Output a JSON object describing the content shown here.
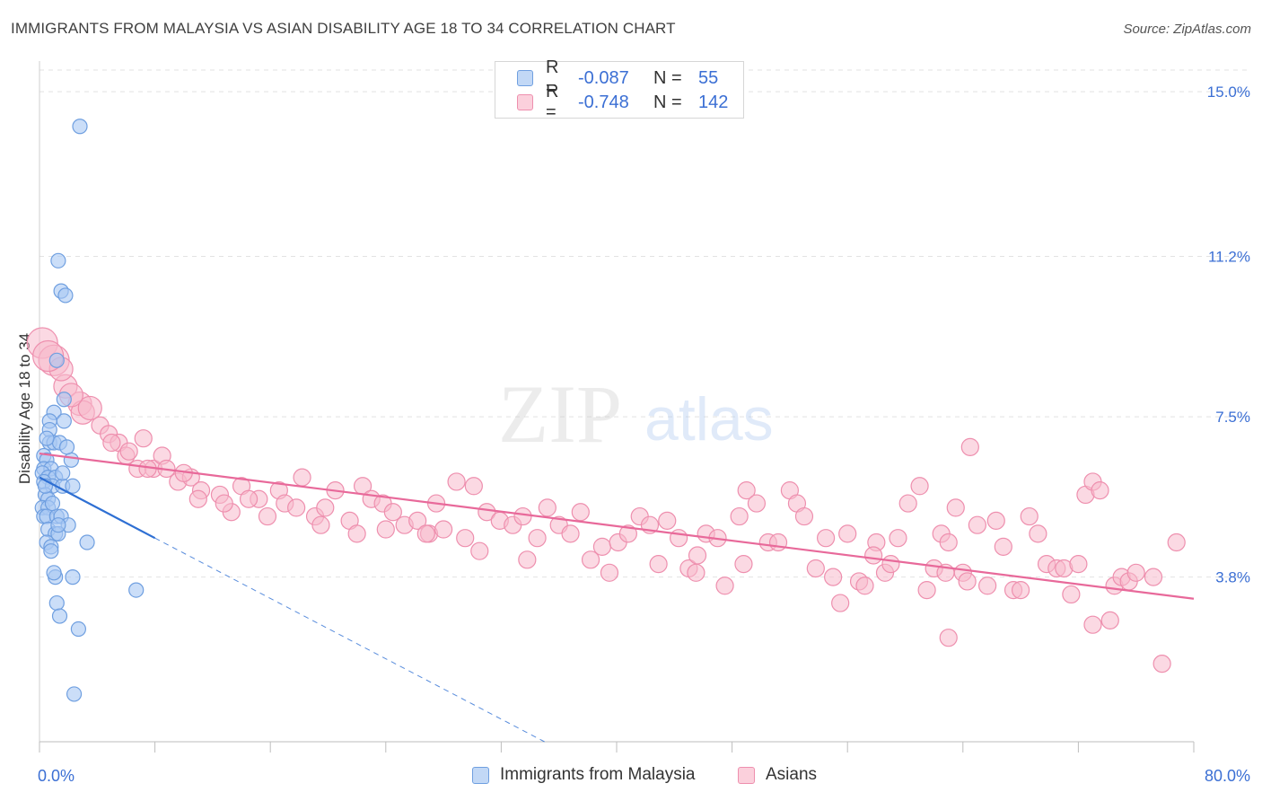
{
  "title": "IMMIGRANTS FROM MALAYSIA VS ASIAN DISABILITY AGE 18 TO 34 CORRELATION CHART",
  "source": "Source: ZipAtlas.com",
  "watermark": {
    "zip": "ZIP",
    "atlas": "atlas"
  },
  "colors": {
    "blue_fill": "#a9c8f3",
    "blue_stroke": "#6f9fe0",
    "blue_line": "#2e6fd3",
    "pink_fill": "#f7b9cc",
    "pink_stroke": "#ee8fae",
    "pink_line": "#e8699a",
    "grid": "#e2e2e2",
    "axis_text": "#3b6fd4"
  },
  "legend_top": [
    {
      "swatch": "blue",
      "r_label": "R =",
      "r_value": "-0.087",
      "n_label": "N =",
      "n_value": "55"
    },
    {
      "swatch": "pink",
      "r_label": "R =",
      "r_value": "-0.748",
      "n_label": "N =",
      "n_value": "142"
    }
  ],
  "legend_bottom": [
    {
      "swatch": "blue",
      "label": "Immigrants from Malaysia"
    },
    {
      "swatch": "pink",
      "label": "Asians"
    }
  ],
  "chart_data": {
    "type": "scatter",
    "title": "IMMIGRANTS FROM MALAYSIA VS ASIAN DISABILITY AGE 18 TO 34 CORRELATION CHART",
    "xlabel": "",
    "ylabel": "Disability Age 18 to 34",
    "xlim": [
      0,
      80
    ],
    "ylim": [
      0,
      15.5
    ],
    "x_tick_labels": [
      "0.0%",
      "80.0%"
    ],
    "y_ticks": [
      3.8,
      7.5,
      11.2,
      15.0
    ],
    "y_tick_labels": [
      "3.8%",
      "7.5%",
      "11.2%",
      "15.0%"
    ],
    "grid": true,
    "legend": "top-center",
    "series": [
      {
        "name": "Immigrants from Malaysia",
        "color": "blue",
        "r": -0.087,
        "n": 55,
        "trend": {
          "x": [
            0,
            8
          ],
          "y": [
            6.1,
            4.7
          ],
          "dashed_to": [
            35,
            0
          ]
        },
        "points": [
          [
            2.8,
            14.2
          ],
          [
            1.3,
            11.1
          ],
          [
            1.5,
            10.4
          ],
          [
            1.8,
            10.3
          ],
          [
            1.2,
            8.8
          ],
          [
            1.7,
            7.9
          ],
          [
            1.0,
            7.6
          ],
          [
            1.7,
            7.4
          ],
          [
            0.7,
            7.4
          ],
          [
            0.7,
            7.2
          ],
          [
            0.7,
            6.9
          ],
          [
            1.0,
            6.9
          ],
          [
            1.4,
            6.9
          ],
          [
            0.3,
            6.6
          ],
          [
            0.5,
            6.5
          ],
          [
            0.3,
            6.3
          ],
          [
            0.8,
            6.3
          ],
          [
            0.2,
            6.2
          ],
          [
            0.6,
            6.1
          ],
          [
            1.1,
            6.1
          ],
          [
            0.3,
            6.0
          ],
          [
            0.9,
            5.9
          ],
          [
            1.6,
            5.9
          ],
          [
            2.3,
            5.9
          ],
          [
            0.4,
            5.7
          ],
          [
            0.6,
            5.6
          ],
          [
            0.2,
            5.4
          ],
          [
            0.6,
            5.4
          ],
          [
            0.3,
            5.2
          ],
          [
            0.5,
            5.2
          ],
          [
            1.2,
            5.2
          ],
          [
            1.5,
            5.2
          ],
          [
            2.0,
            5.0
          ],
          [
            0.6,
            4.9
          ],
          [
            1.1,
            4.8
          ],
          [
            1.3,
            4.8
          ],
          [
            0.5,
            4.6
          ],
          [
            0.8,
            4.5
          ],
          [
            3.3,
            4.6
          ],
          [
            2.3,
            3.8
          ],
          [
            1.1,
            3.8
          ],
          [
            1.0,
            3.9
          ],
          [
            6.7,
            3.5
          ],
          [
            1.2,
            3.2
          ],
          [
            1.4,
            2.9
          ],
          [
            2.7,
            2.6
          ],
          [
            2.4,
            1.1
          ],
          [
            2.2,
            6.5
          ],
          [
            0.4,
            5.9
          ],
          [
            0.9,
            5.5
          ],
          [
            1.6,
            6.2
          ],
          [
            0.5,
            7.0
          ],
          [
            1.9,
            6.8
          ],
          [
            0.8,
            4.4
          ],
          [
            1.3,
            5.0
          ]
        ]
      },
      {
        "name": "Asians",
        "color": "pink",
        "r": -0.748,
        "n": 142,
        "trend": {
          "x": [
            0,
            80
          ],
          "y": [
            6.65,
            3.3
          ]
        },
        "points": [
          [
            0.2,
            9.2
          ],
          [
            1.0,
            8.8
          ],
          [
            1.8,
            8.2
          ],
          [
            2.8,
            7.8
          ],
          [
            3.0,
            7.6
          ],
          [
            4.2,
            7.3
          ],
          [
            4.8,
            7.1
          ],
          [
            5.5,
            6.9
          ],
          [
            6.0,
            6.6
          ],
          [
            6.8,
            6.3
          ],
          [
            7.2,
            7.0
          ],
          [
            7.9,
            6.3
          ],
          [
            8.5,
            6.6
          ],
          [
            9.6,
            6.0
          ],
          [
            10.5,
            6.1
          ],
          [
            11.2,
            5.8
          ],
          [
            12.5,
            5.7
          ],
          [
            13.3,
            5.3
          ],
          [
            14.0,
            5.9
          ],
          [
            15.2,
            5.6
          ],
          [
            16.6,
            5.8
          ],
          [
            17.0,
            5.5
          ],
          [
            18.2,
            6.1
          ],
          [
            19.1,
            5.2
          ],
          [
            19.8,
            5.4
          ],
          [
            20.5,
            5.8
          ],
          [
            21.5,
            5.1
          ],
          [
            22.4,
            5.9
          ],
          [
            23.0,
            5.6
          ],
          [
            23.8,
            5.5
          ],
          [
            24.5,
            5.3
          ],
          [
            25.3,
            5.0
          ],
          [
            26.2,
            5.1
          ],
          [
            27.0,
            4.8
          ],
          [
            27.5,
            5.5
          ],
          [
            28.0,
            4.9
          ],
          [
            28.9,
            6.0
          ],
          [
            29.5,
            4.7
          ],
          [
            30.1,
            5.9
          ],
          [
            31.0,
            5.3
          ],
          [
            31.9,
            5.1
          ],
          [
            32.8,
            5.0
          ],
          [
            33.5,
            5.2
          ],
          [
            34.5,
            4.7
          ],
          [
            35.2,
            5.4
          ],
          [
            36.0,
            5.0
          ],
          [
            36.8,
            4.8
          ],
          [
            37.5,
            5.3
          ],
          [
            38.2,
            4.2
          ],
          [
            39.0,
            4.5
          ],
          [
            39.5,
            3.9
          ],
          [
            40.1,
            4.6
          ],
          [
            40.8,
            4.8
          ],
          [
            41.6,
            5.2
          ],
          [
            42.3,
            5.0
          ],
          [
            42.9,
            4.1
          ],
          [
            43.5,
            5.1
          ],
          [
            44.3,
            4.7
          ],
          [
            45.0,
            4.0
          ],
          [
            45.6,
            4.3
          ],
          [
            46.2,
            4.8
          ],
          [
            47.0,
            4.7
          ],
          [
            47.5,
            3.6
          ],
          [
            48.5,
            5.2
          ],
          [
            49.0,
            5.8
          ],
          [
            49.7,
            5.5
          ],
          [
            50.5,
            4.6
          ],
          [
            51.2,
            4.6
          ],
          [
            52.0,
            5.8
          ],
          [
            52.5,
            5.5
          ],
          [
            53.0,
            5.2
          ],
          [
            53.8,
            4.0
          ],
          [
            54.5,
            4.7
          ],
          [
            55.0,
            3.8
          ],
          [
            55.5,
            3.2
          ],
          [
            56.0,
            4.8
          ],
          [
            56.8,
            3.7
          ],
          [
            57.2,
            3.6
          ],
          [
            58.0,
            4.6
          ],
          [
            58.6,
            3.9
          ],
          [
            59.0,
            4.1
          ],
          [
            59.5,
            4.7
          ],
          [
            60.2,
            5.5
          ],
          [
            61.0,
            5.9
          ],
          [
            61.5,
            3.5
          ],
          [
            62.0,
            4.0
          ],
          [
            62.5,
            4.8
          ],
          [
            63.0,
            4.6
          ],
          [
            63.5,
            5.4
          ],
          [
            64.0,
            3.9
          ],
          [
            64.3,
            3.7
          ],
          [
            65.0,
            5.0
          ],
          [
            65.7,
            3.6
          ],
          [
            66.3,
            5.1
          ],
          [
            66.8,
            4.5
          ],
          [
            67.5,
            3.5
          ],
          [
            68.0,
            3.5
          ],
          [
            68.6,
            5.2
          ],
          [
            69.2,
            4.8
          ],
          [
            69.8,
            4.1
          ],
          [
            70.5,
            4.0
          ],
          [
            71.0,
            4.0
          ],
          [
            71.5,
            3.4
          ],
          [
            72.0,
            4.1
          ],
          [
            72.5,
            5.7
          ],
          [
            73.0,
            6.0
          ],
          [
            73.5,
            5.8
          ],
          [
            74.5,
            3.6
          ],
          [
            75.0,
            3.8
          ],
          [
            75.5,
            3.7
          ],
          [
            76.0,
            3.9
          ],
          [
            77.2,
            3.8
          ],
          [
            77.8,
            1.8
          ],
          [
            78.8,
            4.6
          ],
          [
            74.2,
            2.8
          ],
          [
            73.0,
            2.7
          ],
          [
            63.0,
            2.4
          ],
          [
            64.5,
            6.8
          ],
          [
            45.5,
            3.9
          ],
          [
            48.8,
            4.1
          ],
          [
            33.8,
            4.2
          ],
          [
            30.5,
            4.4
          ],
          [
            26.8,
            4.8
          ],
          [
            24.0,
            4.9
          ],
          [
            22.0,
            4.8
          ],
          [
            19.5,
            5.0
          ],
          [
            17.8,
            5.4
          ],
          [
            15.8,
            5.2
          ],
          [
            14.5,
            5.6
          ],
          [
            12.8,
            5.5
          ],
          [
            11.0,
            5.6
          ],
          [
            10.0,
            6.2
          ],
          [
            8.8,
            6.3
          ],
          [
            7.5,
            6.3
          ],
          [
            5.0,
            6.9
          ],
          [
            3.5,
            7.7
          ],
          [
            2.2,
            8.0
          ],
          [
            1.5,
            8.6
          ],
          [
            0.6,
            8.9
          ],
          [
            6.2,
            6.7
          ],
          [
            57.8,
            4.3
          ],
          [
            62.8,
            3.9
          ]
        ]
      }
    ]
  }
}
